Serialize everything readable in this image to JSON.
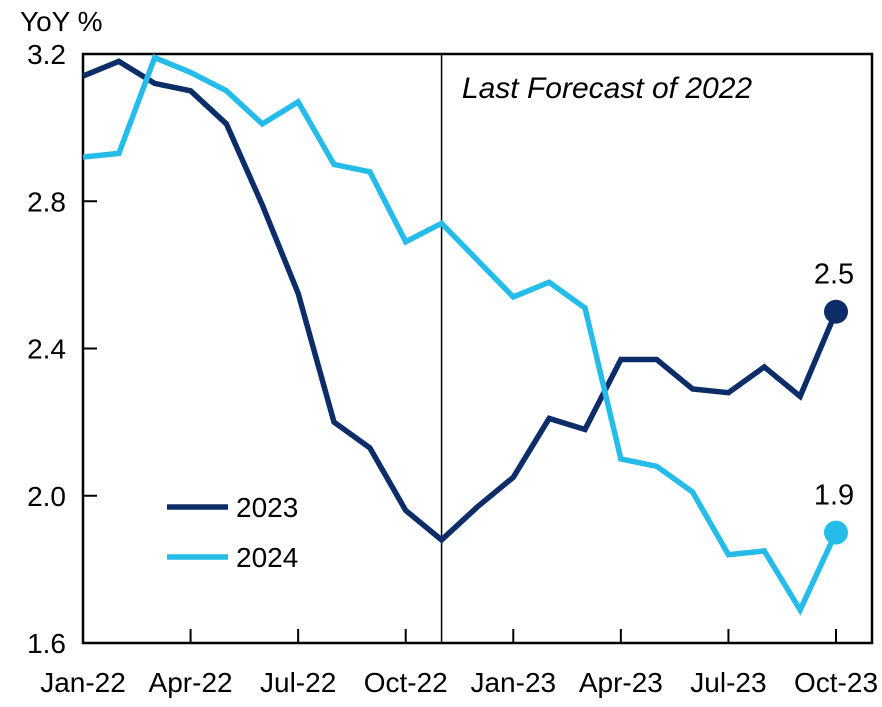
{
  "chart_data": {
    "type": "line",
    "title": "YoY %",
    "xlabel": "",
    "ylabel": "YoY %",
    "ylim": [
      1.6,
      3.2
    ],
    "grid": false,
    "legend_position": "inside lower-left",
    "y_tick_labels": [
      "3.2",
      "2.8",
      "2.4",
      "2.0",
      "1.6"
    ],
    "x": [
      "Jan-22",
      "Feb-22",
      "Mar-22",
      "Apr-22",
      "May-22",
      "Jun-22",
      "Jul-22",
      "Aug-22",
      "Sep-22",
      "Oct-22",
      "Nov-22",
      "Dec-22",
      "Jan-23",
      "Feb-23",
      "Mar-23",
      "Apr-23",
      "May-23",
      "Jun-23",
      "Jul-23",
      "Aug-23",
      "Sep-23",
      "Oct-23"
    ],
    "x_tick_labels": [
      "Jan-22",
      "Apr-22",
      "Jul-22",
      "Oct-22",
      "Jan-23",
      "Apr-23",
      "Jul-23",
      "Oct-23"
    ],
    "vline": {
      "at_month": "Nov-22",
      "color": "#000000"
    },
    "annotation": {
      "text": "Last Forecast of 2022",
      "position": "top, right of vline"
    },
    "series": [
      {
        "name": "2023",
        "color": "#0d2d69",
        "end_label": "2.5",
        "values": [
          3.14,
          3.18,
          3.12,
          3.1,
          3.01,
          2.79,
          2.55,
          2.2,
          2.13,
          1.96,
          1.88,
          1.97,
          2.05,
          2.21,
          2.18,
          2.37,
          2.37,
          2.29,
          2.28,
          2.35,
          2.27,
          2.5
        ]
      },
      {
        "name": "2024",
        "color": "#26bcea",
        "end_label": "1.9",
        "values": [
          2.92,
          2.93,
          3.19,
          3.15,
          3.1,
          3.01,
          3.07,
          2.9,
          2.88,
          2.69,
          2.74,
          2.64,
          2.54,
          2.58,
          2.51,
          2.1,
          2.08,
          2.01,
          1.84,
          1.85,
          1.69,
          1.9
        ]
      }
    ]
  }
}
